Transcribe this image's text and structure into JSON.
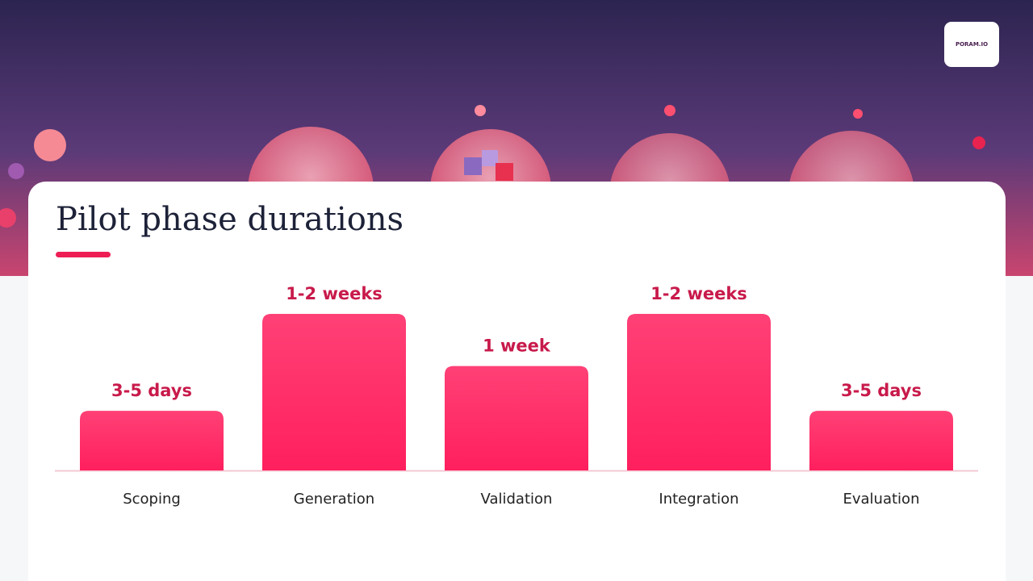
{
  "header": {
    "logo": "PORAM.IO"
  },
  "chart_data": {
    "type": "bar",
    "title": "Pilot phase durations",
    "categories": [
      "Scoping",
      "Generation",
      "Validation",
      "Integration",
      "Evaluation"
    ],
    "values": [
      4,
      10.5,
      7,
      10.5,
      4
    ],
    "value_labels": [
      "3-5 days",
      "1-2 weeks",
      "1 week",
      "1-2 weeks",
      "3-5 days"
    ],
    "color": "#ff1f5e"
  }
}
